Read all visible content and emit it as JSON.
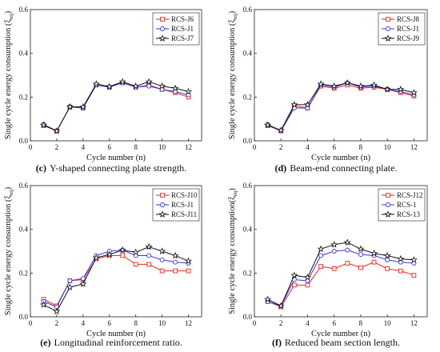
{
  "chart_data": [
    {
      "type": "line",
      "caption_letter": "(c)",
      "caption_text": "Y-shaped connecting plate strength.",
      "xlabel": "Cycle number (n)",
      "ylabel_main": "Single cycle energy consumption (ξ",
      "ylabel_sub": "eq",
      "ylabel_end": ")",
      "xlim": [
        0,
        13
      ],
      "ylim": [
        0,
        0.6
      ],
      "xticks": [
        "0",
        "2",
        "4",
        "6",
        "8",
        "10",
        "12"
      ],
      "yticks": [
        "0.0",
        "0.2",
        "0.4",
        "0.6"
      ],
      "legend_position": "top-right",
      "x": [
        1,
        2,
        3,
        4,
        5,
        6,
        7,
        8,
        9,
        10,
        11,
        12
      ],
      "series": [
        {
          "name": "RCS-J6",
          "color": "#e8281e",
          "marker": "square",
          "values": [
            0.07,
            0.045,
            0.155,
            0.15,
            0.255,
            0.245,
            0.265,
            0.245,
            0.255,
            0.235,
            0.22,
            0.2
          ]
        },
        {
          "name": "RCS-J1",
          "color": "#3535e0",
          "marker": "circle",
          "values": [
            0.075,
            0.045,
            0.155,
            0.15,
            0.255,
            0.245,
            0.265,
            0.245,
            0.25,
            0.235,
            0.225,
            0.21
          ]
        },
        {
          "name": "RCS-J7",
          "color": "#111111",
          "marker": "star",
          "values": [
            0.072,
            0.045,
            0.155,
            0.155,
            0.26,
            0.248,
            0.27,
            0.25,
            0.27,
            0.25,
            0.24,
            0.225
          ]
        }
      ]
    },
    {
      "type": "line",
      "caption_letter": "(d)",
      "caption_text": "Beam-end connecting plate.",
      "xlabel": "Cycle number (n)",
      "ylabel_main": "Single cycle energy consumption (ξ",
      "ylabel_sub": "eq",
      "ylabel_end": ")",
      "xlim": [
        0,
        13
      ],
      "ylim": [
        0,
        0.6
      ],
      "xticks": [
        "0",
        "2",
        "4",
        "6",
        "8",
        "10",
        "12"
      ],
      "yticks": [
        "0.0",
        "0.2",
        "0.4",
        "0.6"
      ],
      "legend_position": "top-right",
      "x": [
        1,
        2,
        3,
        4,
        5,
        6,
        7,
        8,
        9,
        10,
        11,
        12
      ],
      "series": [
        {
          "name": "RCS-J8",
          "color": "#e8281e",
          "marker": "square",
          "values": [
            0.07,
            0.045,
            0.16,
            0.15,
            0.25,
            0.24,
            0.255,
            0.24,
            0.245,
            0.235,
            0.22,
            0.205
          ]
        },
        {
          "name": "RCS-J1",
          "color": "#3535e0",
          "marker": "circle",
          "values": [
            0.075,
            0.045,
            0.15,
            0.15,
            0.255,
            0.245,
            0.265,
            0.245,
            0.25,
            0.235,
            0.225,
            0.21
          ]
        },
        {
          "name": "RCS-J9",
          "color": "#111111",
          "marker": "star",
          "values": [
            0.072,
            0.048,
            0.165,
            0.165,
            0.26,
            0.25,
            0.265,
            0.25,
            0.255,
            0.235,
            0.235,
            0.22
          ]
        }
      ]
    },
    {
      "type": "line",
      "caption_letter": "(e)",
      "caption_text": "Longitudinal reinforcement ratio.",
      "xlabel": "Cycle number (n)",
      "ylabel_main": "Single cycle energy consumption (ξ",
      "ylabel_sub": "eq",
      "ylabel_end": ")",
      "xlim": [
        0,
        13
      ],
      "ylim": [
        0,
        0.6
      ],
      "xticks": [
        "0",
        "2",
        "4",
        "6",
        "8",
        "10",
        "12"
      ],
      "yticks": [
        "0.0",
        "0.2",
        "0.4",
        "0.6"
      ],
      "legend_position": "top-right",
      "x": [
        1,
        2,
        3,
        4,
        5,
        6,
        7,
        8,
        9,
        10,
        11,
        12
      ],
      "series": [
        {
          "name": "RCS-J10",
          "color": "#e8281e",
          "marker": "square",
          "values": [
            0.08,
            0.05,
            0.165,
            0.17,
            0.265,
            0.28,
            0.28,
            0.24,
            0.24,
            0.21,
            0.21,
            0.21
          ]
        },
        {
          "name": "RCS-J1",
          "color": "#3535e0",
          "marker": "circle",
          "values": [
            0.07,
            0.045,
            0.165,
            0.175,
            0.28,
            0.3,
            0.305,
            0.28,
            0.28,
            0.26,
            0.25,
            0.245
          ]
        },
        {
          "name": "RCS-J11",
          "color": "#111111",
          "marker": "star",
          "values": [
            0.055,
            0.025,
            0.135,
            0.15,
            0.27,
            0.285,
            0.305,
            0.295,
            0.32,
            0.3,
            0.28,
            0.255
          ]
        }
      ]
    },
    {
      "type": "line",
      "caption_letter": "(f)",
      "caption_text": "Reduced beam section length.",
      "xlabel": "Cycle number (n)",
      "ylabel_main": "Single cycle energy consumption(ξ",
      "ylabel_sub": "eq",
      "ylabel_end": ")",
      "xlim": [
        0,
        13
      ],
      "ylim": [
        0,
        0.6
      ],
      "xticks": [
        "0",
        "2",
        "4",
        "6",
        "8",
        "10",
        "12"
      ],
      "yticks": [
        "0.0",
        "0.2",
        "0.4",
        "0.6"
      ],
      "legend_position": "top-right",
      "x": [
        1,
        2,
        3,
        4,
        5,
        6,
        7,
        8,
        9,
        10,
        11,
        12
      ],
      "series": [
        {
          "name": "RCS-J12",
          "color": "#e8281e",
          "marker": "square",
          "values": [
            0.07,
            0.045,
            0.145,
            0.145,
            0.23,
            0.22,
            0.245,
            0.225,
            0.25,
            0.22,
            0.21,
            0.19
          ]
        },
        {
          "name": "RCS-1",
          "color": "#3535e0",
          "marker": "circle",
          "values": [
            0.07,
            0.05,
            0.17,
            0.165,
            0.28,
            0.3,
            0.305,
            0.285,
            0.28,
            0.26,
            0.25,
            0.245
          ]
        },
        {
          "name": "RCS-13",
          "color": "#111111",
          "marker": "star",
          "values": [
            0.08,
            0.05,
            0.19,
            0.18,
            0.31,
            0.33,
            0.34,
            0.31,
            0.29,
            0.28,
            0.265,
            0.26
          ]
        }
      ]
    }
  ]
}
